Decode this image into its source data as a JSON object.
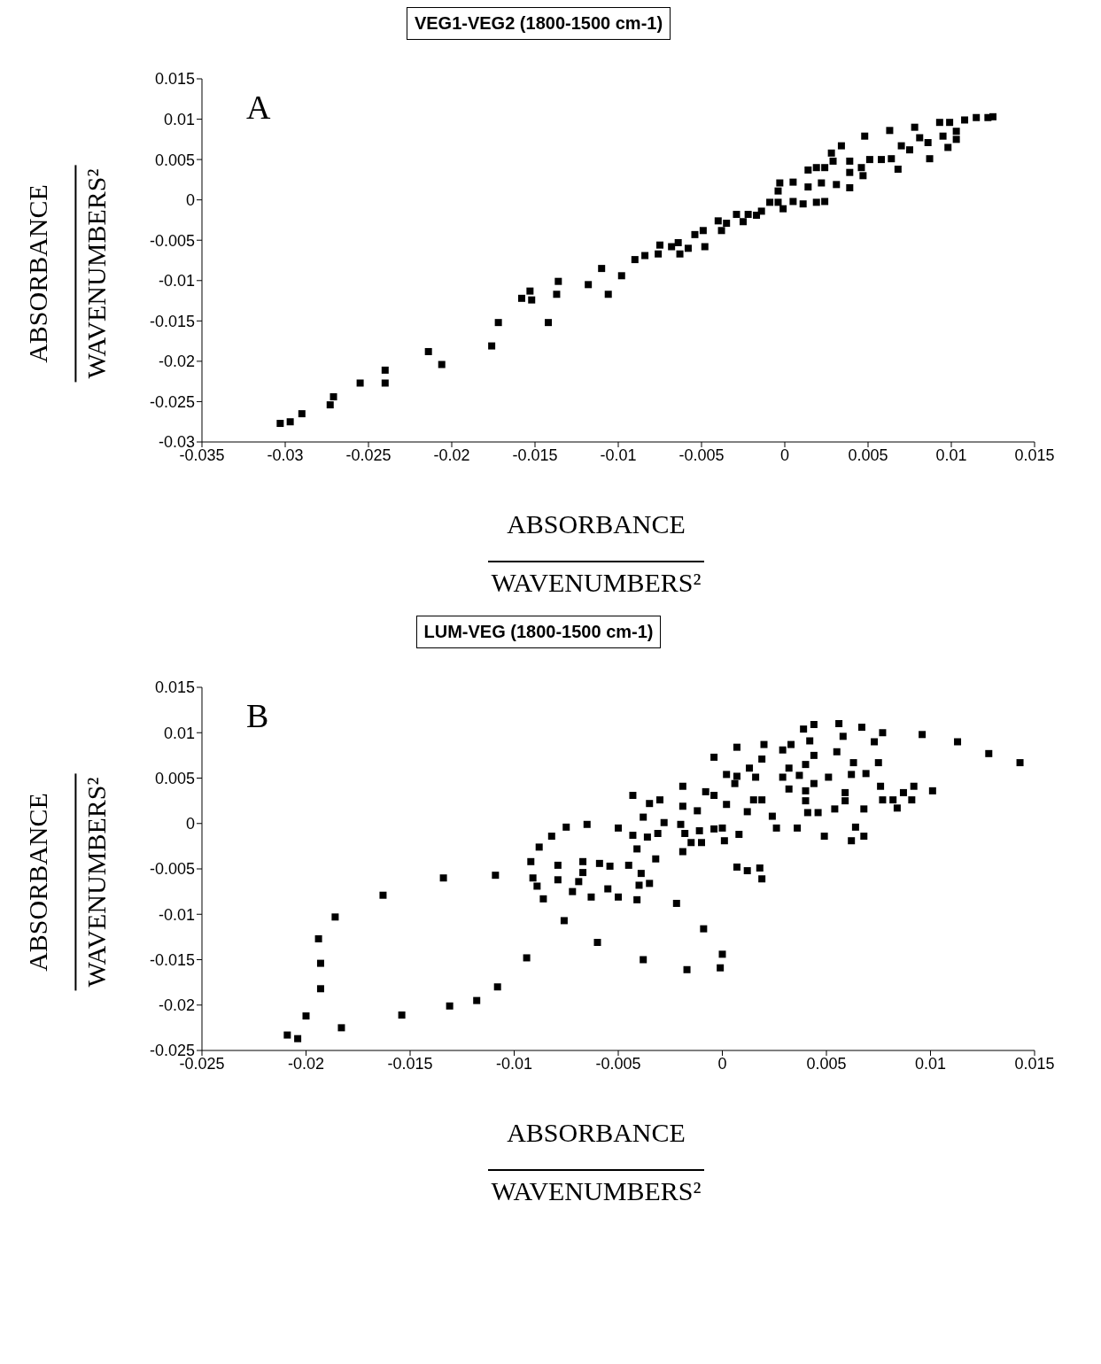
{
  "chart_data": [
    {
      "type": "scatter",
      "title": "VEG1-VEG2 (1800-1500 cm-1)",
      "xlabel": "ABSORBANCE\nWAVENUMBERS²",
      "ylabel": "ABSORBANCE\nWAVENUMBERS²",
      "annotations": [
        "A"
      ],
      "marker": "square",
      "xlim": [
        -0.035,
        0.015
      ],
      "xticks": [
        -0.035,
        -0.03,
        -0.025,
        -0.02,
        -0.015,
        -0.01,
        -0.005,
        0,
        0.005,
        0.01,
        0.015
      ],
      "ylim": [
        -0.03,
        0.015
      ],
      "yticks": [
        -0.03,
        -0.025,
        -0.02,
        -0.015,
        -0.01,
        -0.005,
        0,
        0.005,
        0.01,
        0.015
      ],
      "series": [
        {
          "color": "#000000",
          "x": [
            -0.0303,
            -0.0297,
            -0.029,
            -0.0273,
            -0.0271,
            -0.0255,
            -0.024,
            -0.024,
            -0.0214,
            -0.0206,
            -0.0176,
            -0.0172,
            -0.0158,
            -0.0153,
            -0.0152,
            -0.0142,
            -0.0137,
            -0.0136,
            -0.0118,
            -0.011,
            -0.0106,
            -0.0098,
            -0.009,
            -0.0084,
            -0.0076,
            -0.0075,
            -0.0068,
            -0.0064,
            -0.0063,
            -0.0058,
            -0.0054,
            -0.0049,
            -0.0048,
            -0.0038,
            -0.004,
            -0.0035,
            -0.0029,
            -0.0025,
            -0.0022,
            -0.0017,
            -0.0014,
            -0.0009,
            -0.0004,
            -0.0001,
            0.0005,
            0.0011,
            0.0019,
            0.0024,
            -0.0004,
            -0.0003,
            0.0005,
            0.0014,
            0.0019,
            0.0024,
            0.0028,
            0.0034,
            0.0029,
            0.0039,
            0.0039,
            0.0031,
            0.0039,
            0.0022,
            0.0014,
            0.0046,
            0.0047,
            0.0048,
            0.0051,
            0.0058,
            0.0063,
            0.0064,
            0.0068,
            0.007,
            0.0075,
            0.0078,
            0.0081,
            0.0086,
            0.0087,
            0.0093,
            0.0095,
            0.0098,
            0.0099,
            0.0103,
            0.0103,
            0.0108,
            0.0115,
            0.0122,
            0.0125
          ],
          "values": [
            -0.0277,
            -0.0275,
            -0.0265,
            -0.0254,
            -0.0244,
            -0.0227,
            -0.0227,
            -0.0211,
            -0.0188,
            -0.0204,
            -0.0181,
            -0.0152,
            -0.0122,
            -0.0113,
            -0.0124,
            -0.0152,
            -0.0117,
            -0.0101,
            -0.0105,
            -0.0085,
            -0.0117,
            -0.0094,
            -0.0074,
            -0.0069,
            -0.0067,
            -0.0056,
            -0.0058,
            -0.0053,
            -0.0067,
            -0.006,
            -0.0043,
            -0.0038,
            -0.0058,
            -0.0038,
            -0.0026,
            -0.0029,
            -0.0018,
            -0.0027,
            -0.0018,
            -0.0019,
            -0.0014,
            -0.0003,
            -0.0003,
            -0.0011,
            -0.0002,
            -0.0005,
            -0.0003,
            -0.0002,
            0.0011,
            0.0021,
            0.0022,
            0.0037,
            0.004,
            0.004,
            0.0058,
            0.0067,
            0.0048,
            0.0048,
            0.0034,
            0.0019,
            0.0015,
            0.0021,
            0.0016,
            0.004,
            0.003,
            0.0079,
            0.005,
            0.005,
            0.0086,
            0.0051,
            0.0038,
            0.0067,
            0.0062,
            0.009,
            0.0077,
            0.0071,
            0.0051,
            0.0096,
            0.0079,
            0.0065,
            0.0096,
            0.0085,
            0.0075,
            0.0099,
            0.0102,
            0.0102,
            0.0103
          ]
        }
      ]
    },
    {
      "type": "scatter",
      "title": "LUM-VEG (1800-1500 cm-1)",
      "xlabel": "ABSORBANCE\nWAVENUMBERS²",
      "ylabel": "ABSORBANCE\nWAVENUMBERS²",
      "annotations": [
        "B"
      ],
      "marker": "square",
      "xlim": [
        -0.025,
        0.015
      ],
      "xticks": [
        -0.025,
        -0.02,
        -0.015,
        -0.01,
        -0.005,
        0,
        0.005,
        0.01,
        0.015
      ],
      "ylim": [
        -0.025,
        0.015
      ],
      "yticks": [
        -0.025,
        -0.02,
        -0.015,
        -0.01,
        -0.005,
        0,
        0.005,
        0.01,
        0.015
      ],
      "series": [
        {
          "color": "#000000",
          "x": [
            -0.0209,
            -0.0204,
            -0.02,
            -0.0193,
            -0.0193,
            -0.0194,
            -0.0186,
            -0.0183,
            -0.0163,
            -0.0154,
            -0.0134,
            -0.0131,
            -0.0118,
            -0.0109,
            -0.0108,
            -0.0094,
            -0.0092,
            -0.0091,
            -0.0089,
            -0.0088,
            -0.0086,
            -0.0082,
            -0.0079,
            -0.0079,
            -0.0076,
            -0.0075,
            -0.0072,
            -0.0069,
            -0.0067,
            -0.0067,
            -0.0065,
            -0.0063,
            -0.006,
            -0.0059,
            -0.0055,
            -0.0054,
            -0.005,
            -0.005,
            -0.0045,
            -0.0043,
            -0.0043,
            -0.0041,
            -0.0041,
            -0.004,
            -0.0039,
            -0.0038,
            -0.0036,
            -0.0035,
            -0.0035,
            -0.0032,
            -0.0031,
            -0.003,
            -0.0028,
            -0.0022,
            -0.002,
            -0.0019,
            -0.0019,
            -0.0019,
            -0.0018,
            -0.0015,
            -0.0012,
            -0.0011,
            -0.001,
            -0.0009,
            -0.0008,
            -0.0004,
            -0.0004,
            -0.0004,
            0,
            0.0001,
            0.0002,
            0.0002,
            0.0006,
            0.0007,
            0.0007,
            0.0007,
            0.0008,
            0.0012,
            0.0012,
            0.0013,
            0.0015,
            0.0016,
            0.0018,
            0.0019,
            0.0019,
            0.0019,
            0.002,
            0.0024,
            0.0026,
            0.0029,
            0.0029,
            0.0032,
            0.0032,
            0.0033,
            0.0036,
            0.0037,
            0.0039,
            0.004,
            0.004,
            0.004,
            0.0041,
            0.0042,
            0.0044,
            0.0044,
            0.0044,
            0.0046,
            0.0049,
            0.0051,
            0.0054,
            0.0055,
            0.0056,
            0.0058,
            0.0059,
            0.0059,
            0.0062,
            0.0062,
            0.0063,
            0.0064,
            0.0067,
            0.0068,
            0.0068,
            0.0069,
            0.0073,
            0.0075,
            0.0076,
            0.0077,
            0.0077,
            0.0082,
            0.0084,
            0.0087,
            0.0091,
            0.0092,
            0.0096,
            0.0101,
            0.0113,
            0.0128,
            0.0143,
            0,
            -0.0001,
            -0.0017,
            -0.0038
          ],
          "values": [
            -0.0233,
            -0.0237,
            -0.0212,
            -0.0182,
            -0.0154,
            -0.0127,
            -0.0103,
            -0.0225,
            -0.0079,
            -0.0211,
            -0.006,
            -0.0201,
            -0.0195,
            -0.0057,
            -0.018,
            -0.0148,
            -0.0042,
            -0.006,
            -0.0069,
            -0.0026,
            -0.0083,
            -0.0014,
            -0.0046,
            -0.0062,
            -0.0107,
            -0.0004,
            -0.0075,
            -0.0064,
            -0.0042,
            -0.0054,
            -0.0001,
            -0.0081,
            -0.0131,
            -0.0044,
            -0.0072,
            -0.0047,
            -0.0081,
            -0.0005,
            -0.0046,
            -0.0013,
            0.0031,
            -0.0084,
            -0.0028,
            -0.0068,
            -0.0055,
            0.0007,
            -0.0015,
            -0.0066,
            0.0022,
            -0.0039,
            -0.0011,
            0.0026,
            0.0001,
            -0.0088,
            -0.0001,
            -0.0031,
            0.0041,
            0.0019,
            -0.0011,
            -0.0021,
            0.0014,
            -0.0008,
            -0.0021,
            -0.0116,
            0.0035,
            0.0073,
            0.0031,
            -0.0006,
            -0.0005,
            -0.0019,
            0.0021,
            0.0054,
            0.0044,
            0.0052,
            0.0084,
            -0.0048,
            -0.0012,
            -0.0052,
            0.0013,
            0.0061,
            0.0026,
            0.0051,
            -0.0049,
            -0.0061,
            0.0071,
            0.0026,
            0.0087,
            0.0008,
            -0.0005,
            0.0081,
            0.0051,
            0.0061,
            0.0038,
            0.0087,
            -0.0005,
            0.0053,
            0.0104,
            0.0065,
            0.0025,
            0.0036,
            0.0012,
            0.0091,
            0.0109,
            0.0075,
            0.0044,
            0.0012,
            -0.0014,
            0.0051,
            0.0016,
            0.0079,
            0.011,
            0.0096,
            0.0034,
            0.0025,
            0.0054,
            -0.0019,
            0.0067,
            -0.0004,
            0.0106,
            0.0016,
            -0.0014,
            0.0055,
            0.009,
            0.0067,
            0.0041,
            0.01,
            0.0026,
            0.0026,
            0.0017,
            0.0034,
            0.0026,
            0.0041,
            0.0098,
            0.0036,
            0.009,
            0.0077,
            0.0067,
            -0.0144,
            -0.0159,
            -0.0161,
            -0.015
          ]
        }
      ]
    }
  ]
}
